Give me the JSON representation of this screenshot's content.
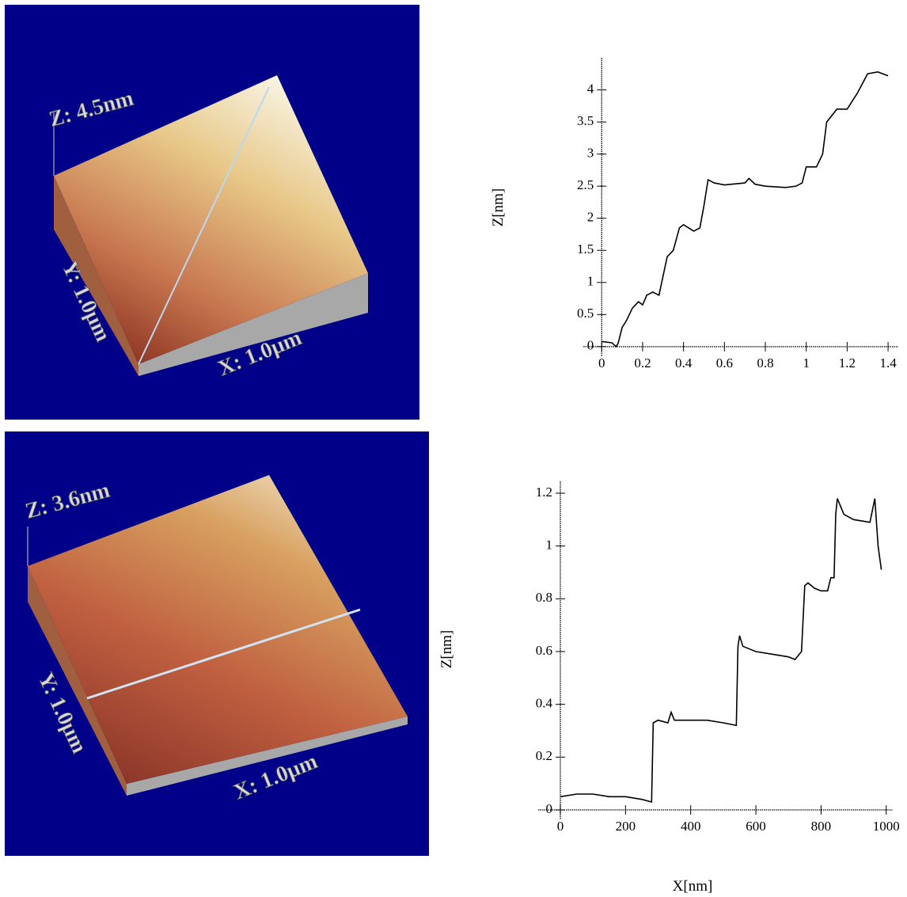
{
  "images": [
    {
      "z_label": "Z: 4.5nm",
      "y_label": "Y: 1.0µm",
      "x_label": "X: 1.0µm"
    },
    {
      "z_label": "Z: 3.6nm",
      "y_label": "Y: 1.0µm",
      "x_label": "X: 1.0µm"
    }
  ],
  "chart_data": [
    {
      "type": "line",
      "ylabel": "Z[nm]",
      "x": [
        0,
        0.05,
        0.07,
        0.08,
        0.1,
        0.12,
        0.15,
        0.18,
        0.2,
        0.22,
        0.25,
        0.28,
        0.3,
        0.32,
        0.35,
        0.38,
        0.4,
        0.45,
        0.48,
        0.5,
        0.52,
        0.55,
        0.6,
        0.7,
        0.72,
        0.75,
        0.8,
        0.9,
        0.95,
        0.98,
        1.0,
        1.05,
        1.08,
        1.1,
        1.15,
        1.2,
        1.25,
        1.3,
        1.35,
        1.4
      ],
      "values": [
        0.08,
        0.06,
        0.0,
        0.05,
        0.3,
        0.4,
        0.6,
        0.7,
        0.65,
        0.8,
        0.85,
        0.8,
        1.1,
        1.4,
        1.5,
        1.85,
        1.9,
        1.8,
        1.85,
        2.2,
        2.6,
        2.55,
        2.52,
        2.55,
        2.62,
        2.53,
        2.5,
        2.48,
        2.5,
        2.55,
        2.8,
        2.8,
        3.0,
        3.5,
        3.7,
        3.7,
        3.95,
        4.25,
        4.28,
        4.22
      ],
      "color": "#000000",
      "xlim": [
        -0.09,
        1.45
      ],
      "ylim": [
        -0.15,
        4.5
      ],
      "xticks": [
        0,
        0.2,
        0.4,
        0.6,
        0.8,
        1,
        1.2,
        1.4
      ],
      "yticks": [
        0,
        0.5,
        1,
        1.5,
        2,
        2.5,
        3,
        3.5,
        4
      ]
    },
    {
      "type": "line",
      "ylabel": "Z[nm]",
      "xlabel": "X[nm]",
      "x": [
        0,
        50,
        100,
        150,
        200,
        250,
        280,
        285,
        300,
        330,
        340,
        350,
        400,
        450,
        500,
        540,
        545,
        550,
        560,
        600,
        650,
        700,
        720,
        740,
        750,
        760,
        780,
        800,
        820,
        830,
        840,
        845,
        850,
        870,
        900,
        950,
        965,
        975,
        985
      ],
      "values": [
        0.05,
        0.06,
        0.06,
        0.05,
        0.05,
        0.04,
        0.03,
        0.33,
        0.34,
        0.33,
        0.37,
        0.34,
        0.34,
        0.34,
        0.33,
        0.32,
        0.62,
        0.66,
        0.62,
        0.6,
        0.59,
        0.58,
        0.57,
        0.6,
        0.85,
        0.86,
        0.84,
        0.83,
        0.83,
        0.88,
        0.88,
        1.12,
        1.18,
        1.12,
        1.1,
        1.09,
        1.18,
        1.0,
        0.91
      ],
      "color": "#000000",
      "xlim": [
        -68,
        1020
      ],
      "ylim": [
        -0.036,
        1.245
      ],
      "xticks": [
        0,
        200,
        400,
        600,
        800,
        1000
      ],
      "yticks": [
        0,
        0.2,
        0.4,
        0.6,
        0.8,
        1,
        1.2
      ]
    }
  ]
}
